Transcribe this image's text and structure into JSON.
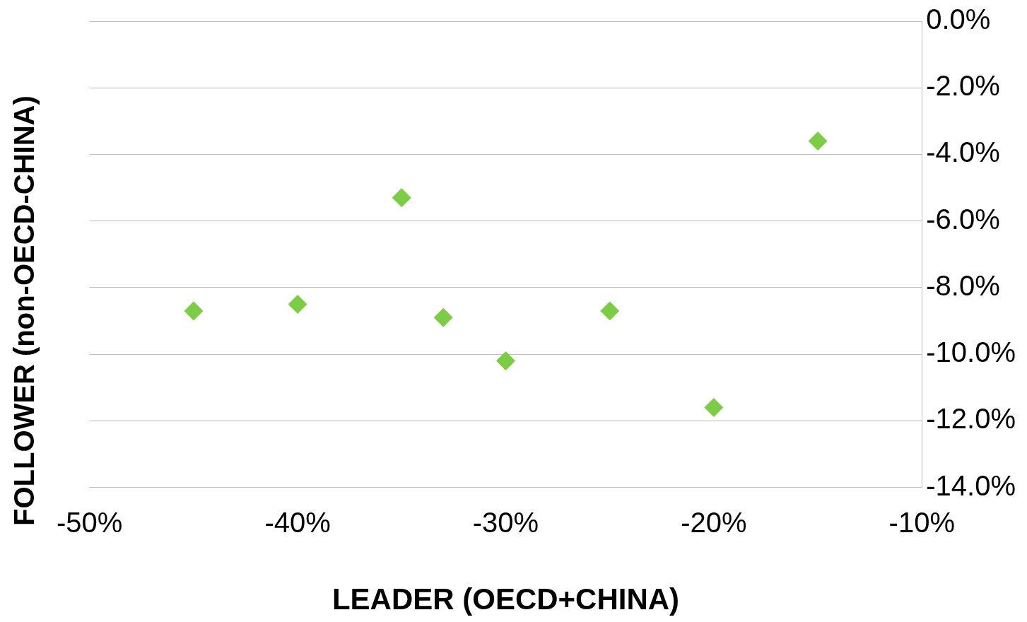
{
  "chart_data": {
    "type": "scatter",
    "xlabel": "LEADER (OECD+CHINA)",
    "ylabel": "FOLLOWER (non-OECD-CHINA)",
    "series": [
      {
        "color": "#7dcc45",
        "x": [
          -45,
          -40,
          -35,
          -33,
          -30,
          -25,
          -20,
          -15
        ],
        "values": [
          -8.7,
          -8.5,
          -5.3,
          -8.9,
          -10.2,
          -8.7,
          -11.6,
          -3.6
        ]
      }
    ],
    "xlim": [
      -50,
      -10
    ],
    "xticks": [
      {
        "value": -50,
        "label": "-50%"
      },
      {
        "value": -40,
        "label": "-40%"
      },
      {
        "value": -30,
        "label": "-30%"
      },
      {
        "value": -20,
        "label": "-20%"
      },
      {
        "value": -10,
        "label": "-10%"
      }
    ],
    "ylim": [
      -14,
      0
    ],
    "yticks": [
      {
        "value": 0,
        "label": "0.0%"
      },
      {
        "value": -2,
        "label": "-2.0%"
      },
      {
        "value": -4,
        "label": "-4.0%"
      },
      {
        "value": -6,
        "label": "-6.0%"
      },
      {
        "value": -8,
        "label": "-8.0%"
      },
      {
        "value": -10,
        "label": "-10.0%"
      },
      {
        "value": -12,
        "label": "-12.0%"
      },
      {
        "value": -14,
        "label": "-14.0%"
      }
    ],
    "grid": "y",
    "legend": false,
    "marker": "diamond"
  }
}
